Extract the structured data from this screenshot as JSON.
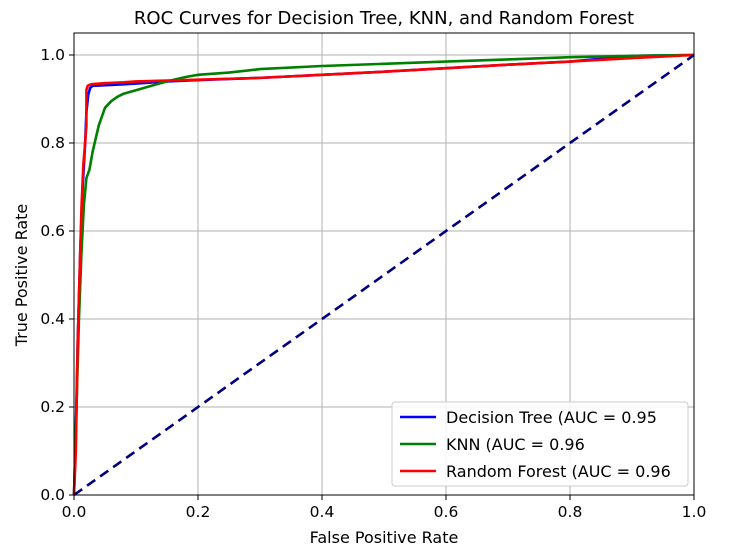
{
  "chart_data": {
    "type": "line",
    "title": "ROC Curves for Decision Tree, KNN, and Random Forest",
    "xlabel": "False Positive Rate",
    "ylabel": "True Positive Rate",
    "xlim": [
      0.0,
      1.0
    ],
    "ylim": [
      0.0,
      1.05
    ],
    "x_ticks": [
      "0.0",
      "0.2",
      "0.4",
      "0.6",
      "0.8",
      "1.0"
    ],
    "y_ticks": [
      "0.0",
      "0.2",
      "0.4",
      "0.6",
      "0.8",
      "1.0"
    ],
    "grid": true,
    "legend_position": "lower-right",
    "series": [
      {
        "name": "Decision Tree (AUC = 0.95",
        "color": "#0000ff",
        "x": [
          0.0,
          0.003,
          0.006,
          0.01,
          0.014,
          0.018,
          0.02,
          0.023,
          0.026,
          0.03,
          0.06,
          0.1,
          0.15,
          0.2,
          0.3,
          0.4,
          0.5,
          0.6,
          0.7,
          0.8,
          0.9,
          0.95,
          1.0
        ],
        "y": [
          0.0,
          0.15,
          0.35,
          0.55,
          0.7,
          0.8,
          0.87,
          0.91,
          0.925,
          0.93,
          0.932,
          0.935,
          0.94,
          0.943,
          0.948,
          0.955,
          0.962,
          0.97,
          0.978,
          0.985,
          0.998,
          0.999,
          1.0
        ]
      },
      {
        "name": "KNN (AUC = 0.96",
        "color": "#008000",
        "x": [
          0.0,
          0.004,
          0.008,
          0.012,
          0.016,
          0.02,
          0.025,
          0.03,
          0.035,
          0.04,
          0.045,
          0.05,
          0.06,
          0.07,
          0.08,
          0.1,
          0.12,
          0.15,
          0.18,
          0.2,
          0.25,
          0.3,
          0.4,
          0.5,
          0.6,
          0.7,
          0.8,
          0.9,
          1.0
        ],
        "y": [
          0.0,
          0.2,
          0.4,
          0.55,
          0.66,
          0.72,
          0.74,
          0.78,
          0.81,
          0.84,
          0.86,
          0.88,
          0.895,
          0.905,
          0.912,
          0.92,
          0.928,
          0.94,
          0.95,
          0.955,
          0.96,
          0.968,
          0.975,
          0.98,
          0.985,
          0.99,
          0.995,
          0.998,
          1.0
        ]
      },
      {
        "name": "Random Forest (AUC = 0.96",
        "color": "#ff0000",
        "x": [
          0.0,
          0.003,
          0.006,
          0.009,
          0.012,
          0.015,
          0.018,
          0.02,
          0.02,
          0.022,
          0.025,
          0.03,
          0.05,
          0.08,
          0.1,
          0.15,
          0.2,
          0.3,
          0.4,
          0.5,
          0.6,
          0.7,
          0.8,
          0.9,
          1.0
        ],
        "y": [
          0.0,
          0.1,
          0.35,
          0.5,
          0.65,
          0.75,
          0.8,
          0.84,
          0.92,
          0.93,
          0.932,
          0.934,
          0.936,
          0.938,
          0.94,
          0.942,
          0.944,
          0.948,
          0.955,
          0.962,
          0.97,
          0.978,
          0.985,
          0.993,
          1.0
        ]
      },
      {
        "name": "",
        "color": "#000080",
        "style": "dashed",
        "x": [
          0.0,
          1.0
        ],
        "y": [
          0.0,
          1.0
        ]
      }
    ]
  }
}
